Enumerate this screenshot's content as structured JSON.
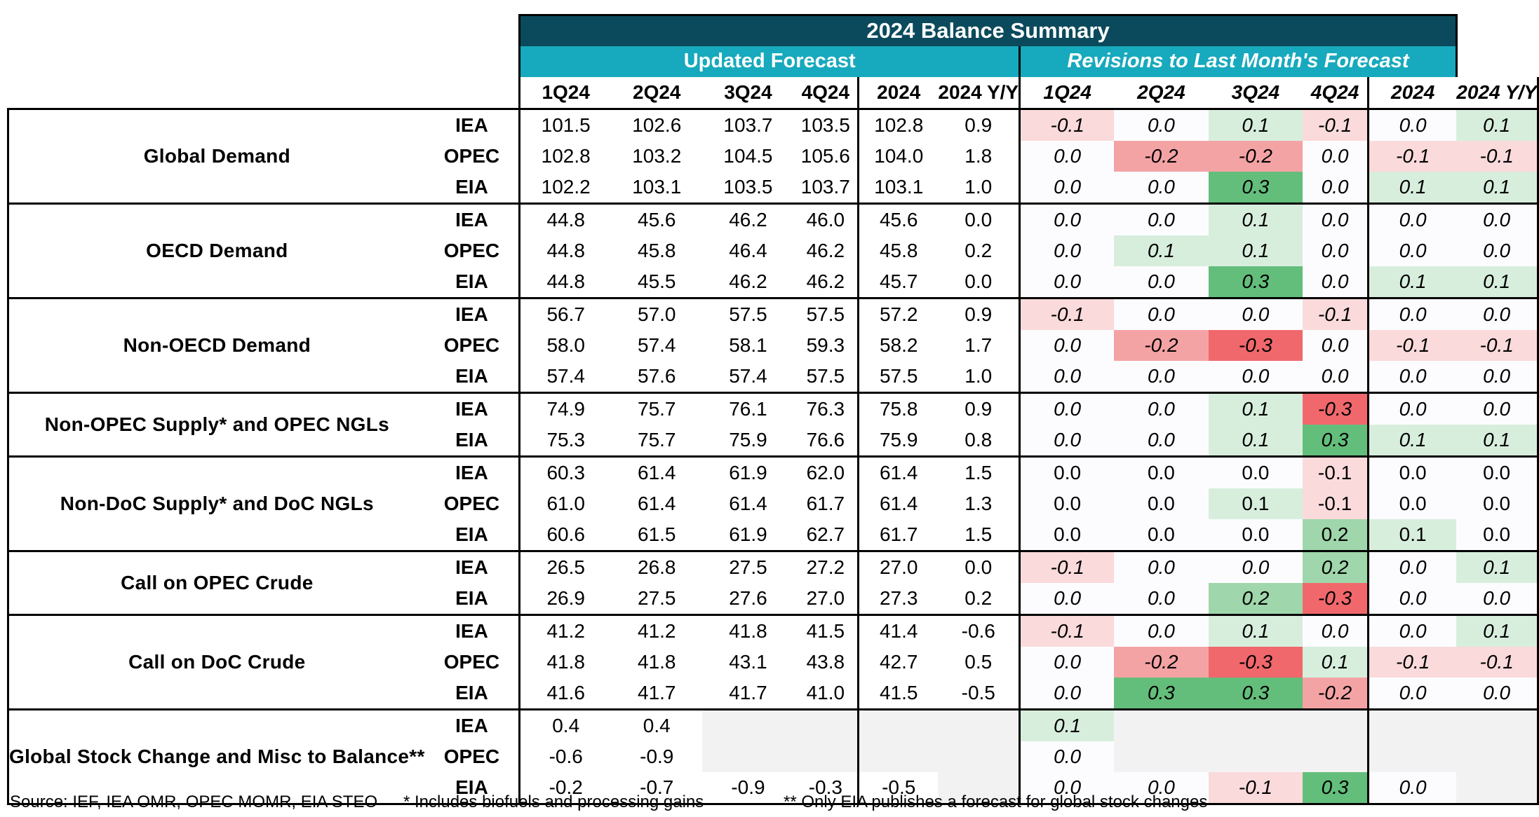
{
  "title": "2024 Balance Summary",
  "sections": {
    "updated": "Updated Forecast",
    "revisions": "Revisions to Last Month's Forecast"
  },
  "columns": {
    "updated": [
      "1Q24",
      "2Q24",
      "3Q24",
      "4Q24",
      "2024",
      "2024 Y/Y"
    ],
    "revisions": [
      "1Q24",
      "2Q24",
      "3Q24",
      "4Q24",
      "2024",
      "2024 Y/Y"
    ]
  },
  "groups": [
    {
      "label": "Global Demand",
      "italic_revisions": true,
      "rows": [
        {
          "source": "IEA",
          "updated": [
            "101.5",
            "102.6",
            "103.7",
            "103.5",
            "102.8",
            "0.9"
          ],
          "revisions": [
            "-0.1",
            "0.0",
            "0.1",
            "-0.1",
            "0.0",
            "0.1"
          ]
        },
        {
          "source": "OPEC",
          "updated": [
            "102.8",
            "103.2",
            "104.5",
            "105.6",
            "104.0",
            "1.8"
          ],
          "revisions": [
            "0.0",
            "-0.2",
            "-0.2",
            "0.0",
            "-0.1",
            "-0.1"
          ]
        },
        {
          "source": "EIA",
          "updated": [
            "102.2",
            "103.1",
            "103.5",
            "103.7",
            "103.1",
            "1.0"
          ],
          "revisions": [
            "0.0",
            "0.0",
            "0.3",
            "0.0",
            "0.1",
            "0.1"
          ]
        }
      ]
    },
    {
      "label": "OECD Demand",
      "italic_revisions": true,
      "rows": [
        {
          "source": "IEA",
          "updated": [
            "44.8",
            "45.6",
            "46.2",
            "46.0",
            "45.6",
            "0.0"
          ],
          "revisions": [
            "0.0",
            "0.0",
            "0.1",
            "0.0",
            "0.0",
            "0.0"
          ]
        },
        {
          "source": "OPEC",
          "updated": [
            "44.8",
            "45.8",
            "46.4",
            "46.2",
            "45.8",
            "0.2"
          ],
          "revisions": [
            "0.0",
            "0.1",
            "0.1",
            "0.0",
            "0.0",
            "0.0"
          ]
        },
        {
          "source": "EIA",
          "updated": [
            "44.8",
            "45.5",
            "46.2",
            "46.2",
            "45.7",
            "0.0"
          ],
          "revisions": [
            "0.0",
            "0.0",
            "0.3",
            "0.0",
            "0.1",
            "0.1"
          ]
        }
      ]
    },
    {
      "label": "Non-OECD Demand",
      "italic_revisions": true,
      "rows": [
        {
          "source": "IEA",
          "updated": [
            "56.7",
            "57.0",
            "57.5",
            "57.5",
            "57.2",
            "0.9"
          ],
          "revisions": [
            "-0.1",
            "0.0",
            "0.0",
            "-0.1",
            "0.0",
            "0.0"
          ]
        },
        {
          "source": "OPEC",
          "updated": [
            "58.0",
            "57.4",
            "58.1",
            "59.3",
            "58.2",
            "1.7"
          ],
          "revisions": [
            "0.0",
            "-0.2",
            "-0.3",
            "0.0",
            "-0.1",
            "-0.1"
          ]
        },
        {
          "source": "EIA",
          "updated": [
            "57.4",
            "57.6",
            "57.4",
            "57.5",
            "57.5",
            "1.0"
          ],
          "revisions": [
            "0.0",
            "0.0",
            "0.0",
            "0.0",
            "0.0",
            "0.0"
          ]
        }
      ]
    },
    {
      "label": "Non-OPEC Supply* and OPEC NGLs",
      "italic_revisions": true,
      "rows": [
        {
          "source": "IEA",
          "updated": [
            "74.9",
            "75.7",
            "76.1",
            "76.3",
            "75.8",
            "0.9"
          ],
          "revisions": [
            "0.0",
            "0.0",
            "0.1",
            "-0.3",
            "0.0",
            "0.0"
          ]
        },
        {
          "source": "EIA",
          "updated": [
            "75.3",
            "75.7",
            "75.9",
            "76.6",
            "75.9",
            "0.8"
          ],
          "revisions": [
            "0.0",
            "0.0",
            "0.1",
            "0.3",
            "0.1",
            "0.1"
          ]
        }
      ]
    },
    {
      "label": "Non-DoC Supply* and DoC NGLs",
      "italic_revisions": false,
      "rows": [
        {
          "source": "IEA",
          "updated": [
            "60.3",
            "61.4",
            "61.9",
            "62.0",
            "61.4",
            "1.5"
          ],
          "revisions": [
            "0.0",
            "0.0",
            "0.0",
            "-0.1",
            "0.0",
            "0.0"
          ]
        },
        {
          "source": "OPEC",
          "updated": [
            "61.0",
            "61.4",
            "61.4",
            "61.7",
            "61.4",
            "1.3"
          ],
          "revisions": [
            "0.0",
            "0.0",
            "0.1",
            "-0.1",
            "0.0",
            "0.0"
          ]
        },
        {
          "source": "EIA",
          "updated": [
            "60.6",
            "61.5",
            "61.9",
            "62.7",
            "61.7",
            "1.5"
          ],
          "revisions": [
            "0.0",
            "0.0",
            "0.0",
            "0.2",
            "0.1",
            "0.0"
          ]
        }
      ]
    },
    {
      "label": "Call on OPEC Crude",
      "italic_revisions": true,
      "rows": [
        {
          "source": "IEA",
          "updated": [
            "26.5",
            "26.8",
            "27.5",
            "27.2",
            "27.0",
            "0.0"
          ],
          "revisions": [
            "-0.1",
            "0.0",
            "0.0",
            "0.2",
            "0.0",
            "0.1"
          ]
        },
        {
          "source": "EIA",
          "updated": [
            "26.9",
            "27.5",
            "27.6",
            "27.0",
            "27.3",
            "0.2"
          ],
          "revisions": [
            "0.0",
            "0.0",
            "0.2",
            "-0.3",
            "0.0",
            "0.0"
          ]
        }
      ]
    },
    {
      "label": "Call on DoC Crude",
      "italic_revisions": true,
      "rows": [
        {
          "source": "IEA",
          "updated": [
            "41.2",
            "41.2",
            "41.8",
            "41.5",
            "41.4",
            "-0.6"
          ],
          "revisions": [
            "-0.1",
            "0.0",
            "0.1",
            "0.0",
            "0.0",
            "0.1"
          ]
        },
        {
          "source": "OPEC",
          "updated": [
            "41.8",
            "41.8",
            "43.1",
            "43.8",
            "42.7",
            "0.5"
          ],
          "revisions": [
            "0.0",
            "-0.2",
            "-0.3",
            "0.1",
            "-0.1",
            "-0.1"
          ]
        },
        {
          "source": "EIA",
          "updated": [
            "41.6",
            "41.7",
            "41.7",
            "41.0",
            "41.5",
            "-0.5"
          ],
          "revisions": [
            "0.0",
            "0.3",
            "0.3",
            "-0.2",
            "0.0",
            "0.0"
          ]
        }
      ]
    },
    {
      "label": "Global Stock Change and Misc to Balance**",
      "italic_revisions": true,
      "rows": [
        {
          "source": "IEA",
          "updated": [
            "0.4",
            "0.4",
            null,
            null,
            null,
            null
          ],
          "revisions": [
            "0.1",
            null,
            null,
            null,
            null,
            null
          ]
        },
        {
          "source": "OPEC",
          "updated": [
            "-0.6",
            "-0.9",
            null,
            null,
            null,
            null
          ],
          "revisions": [
            "0.0",
            null,
            null,
            null,
            null,
            null
          ]
        },
        {
          "source": "EIA",
          "updated": [
            "-0.2",
            "-0.7",
            "-0.9",
            "-0.3",
            "-0.5",
            null
          ],
          "revisions": [
            "0.0",
            "0.0",
            "-0.1",
            "0.3",
            "0.0",
            null
          ]
        }
      ]
    }
  ],
  "footnotes": {
    "source": "Source: IEF, IEA OMR, OPEC MOMR, EIA STEO",
    "biofuels": "* Includes biofuels and processing gains",
    "stock": "** Only EIA publishes a forecast for global stock changes"
  },
  "colors": {
    "title_bg": "#0b4a5c",
    "subheader_bg": "#17a9bd",
    "negative_strong": "#f0686c",
    "positive_strong": "#63be7b",
    "empty": "#f2f2f2"
  }
}
